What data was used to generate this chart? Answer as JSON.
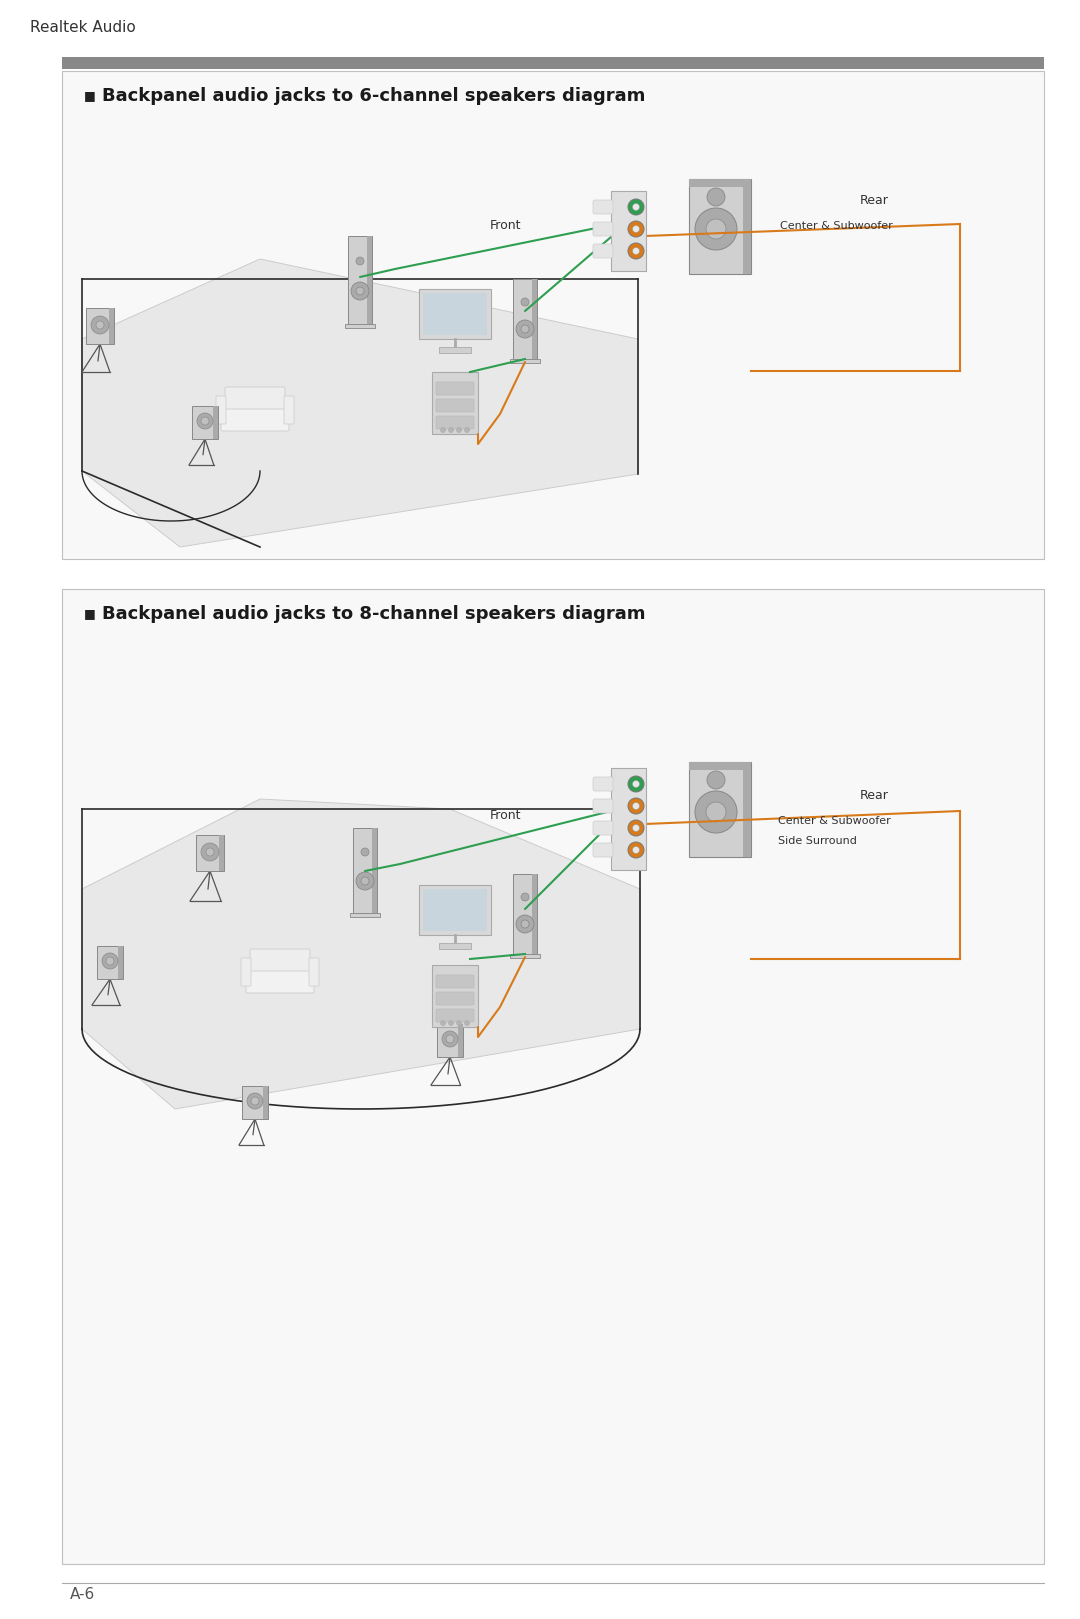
{
  "title_header": "Realtek Audio",
  "page_label": "A-6",
  "bg_color": "#ffffff",
  "header_bar_color": "#888888",
  "border_color": "#c0c0c0",
  "diagram1_title": "Backpanel audio jacks to 6-channel speakers diagram",
  "diagram2_title": "Backpanel audio jacks to 8-channel speakers diagram",
  "label_front": "Front",
  "label_rear": "Rear",
  "label_center_sub": "Center & Subwoofer",
  "label_side_surround": "Side Surround",
  "color_green": "#2e9e50",
  "color_orange": "#d97a1a",
  "color_black": "#1a1a1a",
  "color_floor": "#e0e0e0",
  "color_wall_line": "#333333",
  "color_speaker_light": "#d0d0d0",
  "color_speaker_mid": "#aaaaaa",
  "color_speaker_dark": "#888888",
  "font_title": 13,
  "font_label": 9,
  "font_small": 8,
  "font_header": 11
}
